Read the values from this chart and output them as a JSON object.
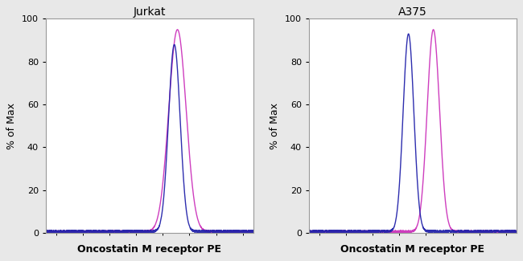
{
  "panel1_title": "Jurkat",
  "panel2_title": "A375",
  "xlabel": "Oncostatin M receptor PE",
  "ylabel": "% of Max",
  "ylim": [
    0,
    100
  ],
  "yticks": [
    0,
    20,
    40,
    60,
    80,
    100
  ],
  "background_color": "#e8e8e8",
  "plot_bg_color": "#ffffff",
  "blue_color": "#2222aa",
  "pink_color": "#cc33bb",
  "title_fontsize": 10,
  "label_fontsize": 9,
  "tick_fontsize": 8,
  "panel1": {
    "blue_mean": 0.62,
    "blue_std": 0.028,
    "blue_peak": 88,
    "pink_mean": 0.635,
    "pink_std": 0.042,
    "pink_peak": 95
  },
  "panel2": {
    "blue_mean": 0.48,
    "blue_std": 0.026,
    "blue_peak": 93,
    "pink_mean": 0.6,
    "pink_std": 0.03,
    "pink_peak": 95
  }
}
